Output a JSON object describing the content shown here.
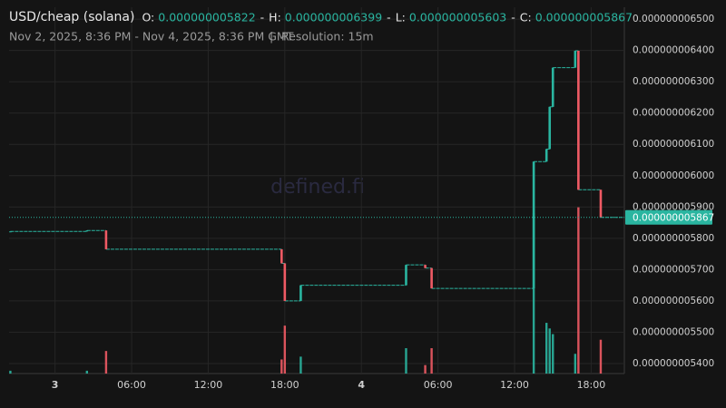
{
  "header": {
    "symbol": "USD/cheap (solana)",
    "ohlc": [
      {
        "key": "O:",
        "text": "0.000000005822"
      },
      {
        "key": "H:",
        "text": "0.000000006399"
      },
      {
        "key": "L:",
        "text": "0.000000005603"
      },
      {
        "key": "C:",
        "text": "0.000000005867"
      }
    ],
    "separator": "-",
    "range": "Nov 2, 2025, 8:36 PM - Nov 4, 2025, 8:36 PM GMT",
    "divider": "|",
    "resolution": "Resolution: 15m"
  },
  "watermark": "defined.fi",
  "chart_data": {
    "type": "candlestick",
    "up_color": "#2ab5a0",
    "down_color": "#ef5a64",
    "grid": true,
    "x": [
      -3.5,
      2.5,
      4.0,
      17.75,
      18.0,
      19.25,
      27.5,
      29.0,
      29.5,
      37.5,
      38.5,
      38.75,
      39.0,
      40.75,
      41.0,
      42.75
    ],
    "open": [
      5.822e-09,
      5.822e-09,
      5.825e-09,
      5.765e-09,
      5.72e-09,
      5.6e-09,
      5.65e-09,
      5.715e-09,
      5.705e-09,
      5.64e-09,
      6.045e-09,
      6.085e-09,
      6.22e-09,
      6.345e-09,
      6.399e-09,
      5.955e-09
    ],
    "high": [
      5.822e-09,
      5.825e-09,
      5.825e-09,
      5.765e-09,
      5.72e-09,
      5.65e-09,
      5.715e-09,
      5.715e-09,
      5.705e-09,
      6.045e-09,
      6.085e-09,
      6.22e-09,
      6.345e-09,
      6.399e-09,
      6.399e-09,
      5.955e-09
    ],
    "low": [
      5.822e-09,
      5.822e-09,
      5.765e-09,
      5.72e-09,
      5.6e-09,
      5.6e-09,
      5.65e-09,
      5.705e-09,
      5.64e-09,
      5.64e-09,
      6.045e-09,
      6.085e-09,
      6.22e-09,
      6.345e-09,
      5.955e-09,
      5.867e-09
    ],
    "close": [
      5.822e-09,
      5.825e-09,
      5.765e-09,
      5.72e-09,
      5.6e-09,
      5.65e-09,
      5.715e-09,
      5.705e-09,
      5.64e-09,
      6.045e-09,
      6.085e-09,
      6.22e-09,
      6.345e-09,
      6.399e-09,
      5.955e-09,
      5.867e-09
    ],
    "volume": [
      1,
      1,
      8,
      5,
      17,
      6,
      9,
      3,
      9,
      57,
      18,
      16,
      14,
      7,
      59,
      12
    ],
    "volume_lim": [
      0,
      130
    ],
    "xlim": [
      -3.6,
      44.6
    ],
    "xticks": [
      {
        "value": 0,
        "label": "3"
      },
      {
        "value": 6,
        "label": "06:00"
      },
      {
        "value": 12,
        "label": "12:00"
      },
      {
        "value": 18,
        "label": "18:00"
      },
      {
        "value": 24,
        "label": "4"
      },
      {
        "value": 30,
        "label": "06:00"
      },
      {
        "value": 36,
        "label": "12:00"
      },
      {
        "value": 42,
        "label": "18:00"
      }
    ],
    "ylim": [
      5.368e-09,
      6.538e-09
    ],
    "yticks": [
      {
        "value": 6.5e-09,
        "label": "0.000000006500"
      },
      {
        "value": 6.4e-09,
        "label": "0.000000006400"
      },
      {
        "value": 6.3e-09,
        "label": "0.000000006300"
      },
      {
        "value": 6.2e-09,
        "label": "0.000000006200"
      },
      {
        "value": 6.1e-09,
        "label": "0.000000006100"
      },
      {
        "value": 6e-09,
        "label": "0.000000006000"
      },
      {
        "value": 5.9e-09,
        "label": "0.000000005900"
      },
      {
        "value": 5.8e-09,
        "label": "0.000000005800"
      },
      {
        "value": 5.7e-09,
        "label": "0.000000005700"
      },
      {
        "value": 5.6e-09,
        "label": "0.000000005600"
      },
      {
        "value": 5.5e-09,
        "label": "0.000000005500"
      },
      {
        "value": 5.4e-09,
        "label": "0.000000005400"
      }
    ],
    "last_price": {
      "value": 5.867e-09,
      "label": "0.000000005867"
    }
  }
}
